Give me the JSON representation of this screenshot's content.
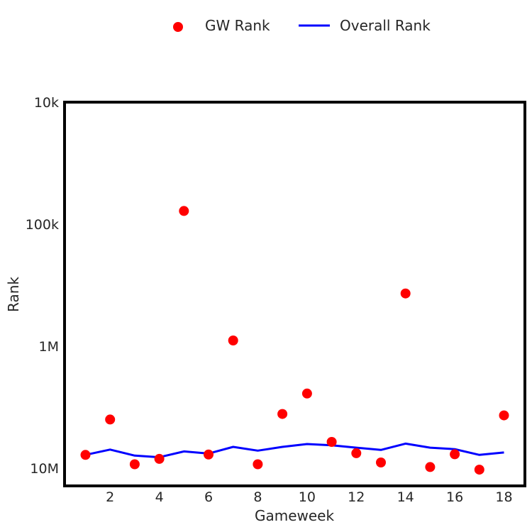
{
  "chart_data": {
    "type": "scatter",
    "xlabel": "Gameweek",
    "ylabel": "Rank",
    "y_scale": "log",
    "y_inverted": true,
    "xlim": [
      0.15,
      18.85
    ],
    "ylim": [
      10000,
      14000000
    ],
    "x_ticks": [
      2,
      4,
      6,
      8,
      10,
      12,
      14,
      16,
      18
    ],
    "y_ticks": [
      {
        "value": 10000,
        "label": "10k"
      },
      {
        "value": 100000,
        "label": "100k"
      },
      {
        "value": 1000000,
        "label": "1M"
      },
      {
        "value": 10000000,
        "label": "10M"
      }
    ],
    "legend_position": "top-center",
    "grid": false,
    "series": [
      {
        "name": "GW Rank",
        "kind": "scatter",
        "color": "#ff0000",
        "x": [
          1,
          2,
          3,
          4,
          5,
          6,
          7,
          8,
          9,
          10,
          11,
          12,
          13,
          14,
          15,
          16,
          17,
          18
        ],
        "y": [
          7800000,
          4000000,
          9300000,
          8400000,
          78000,
          7750000,
          900000,
          9300000,
          3600000,
          2450000,
          6100000,
          7550000,
          9000000,
          370000,
          9800000,
          7700000,
          10300000,
          3700000
        ]
      },
      {
        "name": "Overall Rank",
        "kind": "line",
        "color": "#0000ff",
        "x": [
          1,
          2,
          3,
          4,
          5,
          6,
          7,
          8,
          9,
          10,
          11,
          12,
          13,
          14,
          15,
          16,
          17,
          18
        ],
        "y": [
          7800000,
          7050000,
          7900000,
          8150000,
          7300000,
          7600000,
          6700000,
          7200000,
          6700000,
          6350000,
          6500000,
          6800000,
          7100000,
          6300000,
          6800000,
          7000000,
          7800000,
          7450000
        ]
      }
    ]
  }
}
